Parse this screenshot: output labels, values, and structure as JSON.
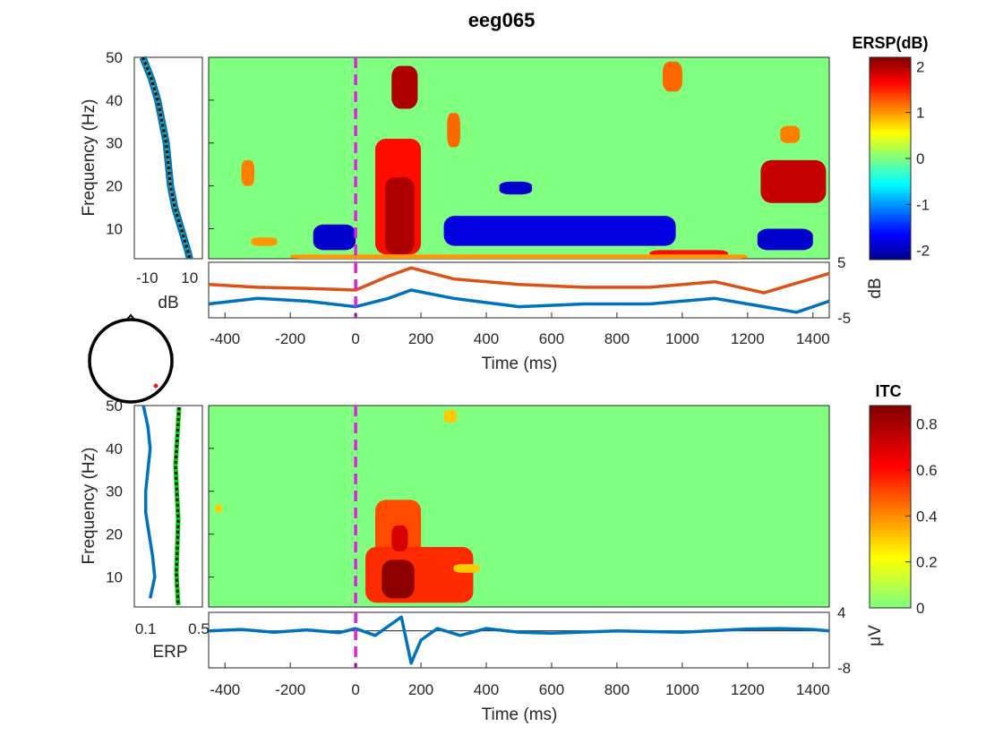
{
  "figure": {
    "title": "eeg065"
  },
  "chart_data": [
    {
      "type": "heatmap",
      "panel": "ERSP",
      "colorbar_title": "ERSP(dB)",
      "colorbar_ticks": [
        2,
        1,
        0,
        -1,
        -2
      ],
      "colorscale": "jet",
      "background_value": 0,
      "ylabel": "Frequency (Hz)",
      "yticks": [
        50,
        40,
        30,
        20,
        10
      ],
      "ylim": [
        3,
        50
      ],
      "xlim": [
        -450,
        1450
      ],
      "event_marker_ms": 0,
      "significant_regions": [
        {
          "time_ms": [
            110,
            190
          ],
          "freq_hz": [
            38,
            48
          ],
          "value": 2.0
        },
        {
          "time_ms": [
            60,
            200
          ],
          "freq_hz": [
            4,
            31
          ],
          "value": 1.6
        },
        {
          "time_ms": [
            90,
            180
          ],
          "freq_hz": [
            4,
            22
          ],
          "value": 2.0
        },
        {
          "time_ms": [
            280,
            320
          ],
          "freq_hz": [
            29,
            37
          ],
          "value": 1.2
        },
        {
          "time_ms": [
            -350,
            -310
          ],
          "freq_hz": [
            20,
            26
          ],
          "value": 1.1
        },
        {
          "time_ms": [
            -320,
            -240
          ],
          "freq_hz": [
            6,
            8
          ],
          "value": 1.0
        },
        {
          "time_ms": [
            -130,
            0
          ],
          "freq_hz": [
            5,
            11
          ],
          "value": -1.9
        },
        {
          "time_ms": [
            270,
            980
          ],
          "freq_hz": [
            6,
            13
          ],
          "value": -1.8
        },
        {
          "time_ms": [
            440,
            540
          ],
          "freq_hz": [
            18,
            21
          ],
          "value": -1.9
        },
        {
          "time_ms": [
            1230,
            1400
          ],
          "freq_hz": [
            5,
            10
          ],
          "value": -1.9
        },
        {
          "time_ms": [
            1240,
            1440
          ],
          "freq_hz": [
            16,
            26
          ],
          "value": 1.9
        },
        {
          "time_ms": [
            940,
            1000
          ],
          "freq_hz": [
            42,
            49
          ],
          "value": 1.2
        },
        {
          "time_ms": [
            1300,
            1360
          ],
          "freq_hz": [
            30,
            34
          ],
          "value": 1.1
        },
        {
          "time_ms": [
            900,
            1140
          ],
          "freq_hz": [
            3,
            5
          ],
          "value": 1.6
        },
        {
          "time_ms": [
            -200,
            1200
          ],
          "freq_hz": [
            3,
            4
          ],
          "value": 1.0
        }
      ],
      "spectrum_panel": {
        "xlabel": "dB",
        "xticks": [
          -10,
          10
        ],
        "series": [
          {
            "freq_hz": [
              50,
              45,
              40,
              35,
              30,
              25,
              20,
              15,
              10,
              5,
              3
            ],
            "db": [
              -12,
              -8,
              -5,
              -3,
              -1,
              0,
              1,
              3,
              6,
              9,
              10
            ]
          }
        ]
      },
      "envelope_panel": {
        "ylabel": "dB",
        "yticks": [
          5,
          -5
        ],
        "series": [
          {
            "name": "max",
            "time_ms": [
              -450,
              -300,
              -150,
              0,
              100,
              170,
              300,
              500,
              700,
              900,
              1100,
              1250,
              1450
            ],
            "db": [
              1,
              0.5,
              0.3,
              0,
              2.5,
              4,
              2,
              1,
              0.5,
              0.5,
              1.5,
              -0.5,
              3
            ]
          },
          {
            "name": "min",
            "time_ms": [
              -450,
              -300,
              -150,
              0,
              100,
              170,
              300,
              500,
              700,
              900,
              1100,
              1250,
              1350,
              1450
            ],
            "db": [
              -2.5,
              -1.5,
              -2,
              -3,
              -1.5,
              0,
              -1.5,
              -3,
              -2.5,
              -2.5,
              -1.5,
              -3,
              -4,
              -2
            ]
          }
        ]
      },
      "xlabel": "Time (ms)",
      "xticks": [
        -400,
        -200,
        0,
        200,
        400,
        600,
        800,
        1000,
        1200,
        1400
      ]
    },
    {
      "type": "heatmap",
      "panel": "ITC",
      "colorbar_title": "ITC",
      "colorbar_ticks": [
        0.8,
        0.6,
        0.4,
        0.2,
        0
      ],
      "colorscale": "green-yellow-red",
      "background_value": 0,
      "ylabel": "Frequency (Hz)",
      "yticks": [
        50,
        40,
        30,
        20,
        10
      ],
      "ylim": [
        3,
        50
      ],
      "xlim": [
        -450,
        1450
      ],
      "event_marker_ms": 0,
      "significant_regions": [
        {
          "time_ms": [
            60,
            200
          ],
          "freq_hz": [
            4,
            28
          ],
          "value": 0.5
        },
        {
          "time_ms": [
            30,
            360
          ],
          "freq_hz": [
            4,
            17
          ],
          "value": 0.55
        },
        {
          "time_ms": [
            80,
            180
          ],
          "freq_hz": [
            5,
            14
          ],
          "value": 0.85
        },
        {
          "time_ms": [
            110,
            160
          ],
          "freq_hz": [
            16,
            22
          ],
          "value": 0.7
        },
        {
          "time_ms": [
            300,
            380
          ],
          "freq_hz": [
            11,
            13
          ],
          "value": 0.3
        },
        {
          "time_ms": [
            270,
            310
          ],
          "freq_hz": [
            46,
            49
          ],
          "value": 0.3
        },
        {
          "time_ms": [
            -430,
            -410
          ],
          "freq_hz": [
            25,
            27
          ],
          "value": 0.3
        }
      ],
      "erp_panel": {
        "xlabel": "ERP",
        "xticks": [
          0.1,
          0.5
        ],
        "series": [
          {
            "freq_hz": [
              50,
              45,
              40,
              35,
              30,
              25,
              20,
              15,
              10,
              5
            ],
            "value": [
              0.08,
              0.12,
              0.14,
              0.12,
              0.1,
              0.1,
              0.13,
              0.16,
              0.18,
              0.14
            ]
          }
        ]
      },
      "erp_trace": {
        "ylabel": "μV",
        "yticks": [
          4,
          -8
        ],
        "series": [
          {
            "time_ms": [
              -450,
              -350,
              -250,
              -150,
              -50,
              0,
              60,
              100,
              140,
              170,
              200,
              250,
              320,
              400,
              500,
              600,
              800,
              1000,
              1200,
              1300,
              1400,
              1450
            ],
            "uv": [
              0,
              0.3,
              -0.3,
              0.2,
              -0.4,
              0.5,
              -1,
              1,
              3,
              -7,
              -2,
              0.5,
              -1,
              0.5,
              -0.3,
              -0.5,
              0,
              -0.3,
              0.4,
              0.5,
              0.3,
              0
            ]
          }
        ]
      },
      "xlabel": "Time (ms)",
      "xticks": [
        -400,
        -200,
        0,
        200,
        400,
        600,
        800,
        1000,
        1200,
        1400
      ]
    }
  ]
}
